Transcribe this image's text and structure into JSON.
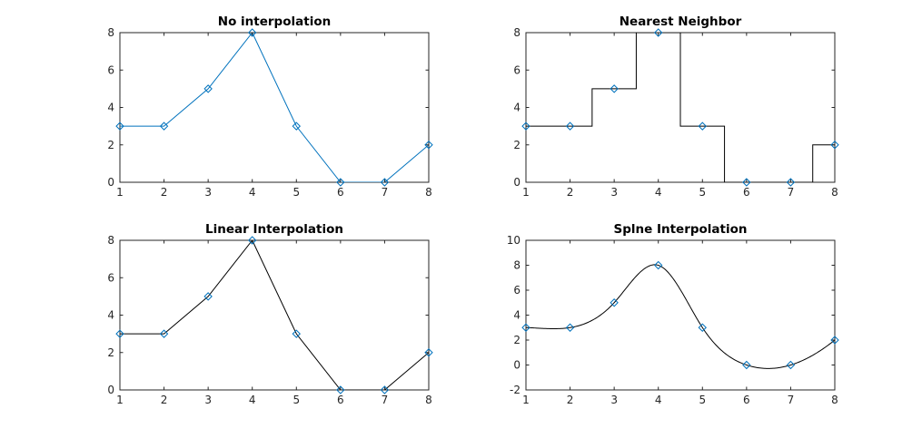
{
  "chart_data": [
    {
      "type": "line",
      "title": "No interpolation",
      "xlabel": "",
      "ylabel": "",
      "xlim": [
        1,
        8
      ],
      "ylim": [
        0,
        8
      ],
      "xticks": [
        1,
        2,
        3,
        4,
        5,
        6,
        7,
        8
      ],
      "yticks": [
        0,
        2,
        4,
        6,
        8
      ],
      "grid": false,
      "series": [
        {
          "kind": "line",
          "color": "#0072BD",
          "x": [
            1,
            2,
            3,
            4,
            5,
            6,
            7,
            8
          ],
          "y": [
            3,
            3,
            5,
            8,
            3,
            0,
            0,
            2
          ]
        },
        {
          "kind": "markers",
          "marker": "diamond",
          "color": "#0072BD",
          "x": [
            1,
            2,
            3,
            4,
            5,
            6,
            7,
            8
          ],
          "y": [
            3,
            3,
            5,
            8,
            3,
            0,
            0,
            2
          ]
        }
      ]
    },
    {
      "type": "line",
      "title": "Nearest Neighbor",
      "xlabel": "",
      "ylabel": "",
      "xlim": [
        1,
        8
      ],
      "ylim": [
        0,
        8
      ],
      "xticks": [
        1,
        2,
        3,
        4,
        5,
        6,
        7,
        8
      ],
      "yticks": [
        0,
        2,
        4,
        6,
        8
      ],
      "grid": false,
      "series": [
        {
          "kind": "nearest",
          "color": "#000000",
          "x": [
            1,
            2,
            3,
            4,
            5,
            6,
            7,
            8
          ],
          "y": [
            3,
            3,
            5,
            8,
            3,
            0,
            0,
            2
          ]
        },
        {
          "kind": "markers",
          "marker": "diamond",
          "color": "#0072BD",
          "x": [
            1,
            2,
            3,
            4,
            5,
            6,
            7,
            8
          ],
          "y": [
            3,
            3,
            5,
            8,
            3,
            0,
            0,
            2
          ]
        }
      ]
    },
    {
      "type": "line",
      "title": "Linear Interpolation",
      "xlabel": "",
      "ylabel": "",
      "xlim": [
        1,
        8
      ],
      "ylim": [
        0,
        8
      ],
      "xticks": [
        1,
        2,
        3,
        4,
        5,
        6,
        7,
        8
      ],
      "yticks": [
        0,
        2,
        4,
        6,
        8
      ],
      "grid": false,
      "series": [
        {
          "kind": "line",
          "color": "#000000",
          "x": [
            1,
            2,
            3,
            4,
            5,
            6,
            7,
            8
          ],
          "y": [
            3,
            3,
            5,
            8,
            3,
            0,
            0,
            2
          ]
        },
        {
          "kind": "markers",
          "marker": "diamond",
          "color": "#0072BD",
          "x": [
            1,
            2,
            3,
            4,
            5,
            6,
            7,
            8
          ],
          "y": [
            3,
            3,
            5,
            8,
            3,
            0,
            0,
            2
          ]
        }
      ]
    },
    {
      "type": "line",
      "title": "Splne Interpolation",
      "xlabel": "",
      "ylabel": "",
      "xlim": [
        1,
        8
      ],
      "ylim": [
        -2,
        10
      ],
      "xticks": [
        1,
        2,
        3,
        4,
        5,
        6,
        7,
        8
      ],
      "yticks": [
        -2,
        0,
        2,
        4,
        6,
        8,
        10
      ],
      "grid": false,
      "series": [
        {
          "kind": "spline",
          "color": "#000000",
          "x": [
            1,
            2,
            3,
            4,
            5,
            6,
            7,
            8
          ],
          "y": [
            3,
            3,
            5,
            8,
            3,
            0,
            0,
            2
          ]
        },
        {
          "kind": "markers",
          "marker": "diamond",
          "color": "#0072BD",
          "x": [
            1,
            2,
            3,
            4,
            5,
            6,
            7,
            8
          ],
          "y": [
            3,
            3,
            5,
            8,
            3,
            0,
            0,
            2
          ]
        }
      ]
    }
  ]
}
